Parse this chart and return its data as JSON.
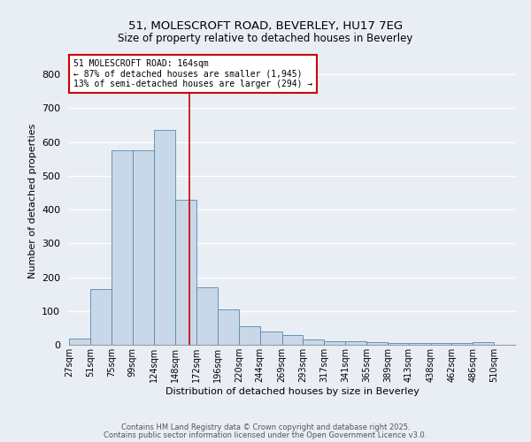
{
  "title1": "51, MOLESCROFT ROAD, BEVERLEY, HU17 7EG",
  "title2": "Size of property relative to detached houses in Beverley",
  "xlabel": "Distribution of detached houses by size in Beverley",
  "ylabel": "Number of detached properties",
  "bin_labels": [
    "27sqm",
    "51sqm",
    "75sqm",
    "99sqm",
    "124sqm",
    "148sqm",
    "172sqm",
    "196sqm",
    "220sqm",
    "244sqm",
    "269sqm",
    "293sqm",
    "317sqm",
    "341sqm",
    "365sqm",
    "389sqm",
    "413sqm",
    "438sqm",
    "462sqm",
    "486sqm",
    "510sqm"
  ],
  "bin_edges": [
    27,
    51,
    75,
    99,
    124,
    148,
    172,
    196,
    220,
    244,
    269,
    293,
    317,
    341,
    365,
    389,
    413,
    438,
    462,
    486,
    510
  ],
  "bar_heights": [
    18,
    165,
    575,
    575,
    635,
    430,
    170,
    105,
    55,
    40,
    30,
    15,
    10,
    10,
    7,
    5,
    5,
    5,
    5,
    7
  ],
  "bar_color": "#c8d8e8",
  "bar_edge_color": "#5588aa",
  "vline_x": 164,
  "vline_color": "#cc0000",
  "annotation_title": "51 MOLESCROFT ROAD: 164sqm",
  "annotation_line2": "← 87% of detached houses are smaller (1,945)",
  "annotation_line3": "13% of semi-detached houses are larger (294) →",
  "annotation_box_color": "#cc0000",
  "annotation_box_fill": "#ffffff",
  "ylim": [
    0,
    850
  ],
  "yticks": [
    0,
    100,
    200,
    300,
    400,
    500,
    600,
    700,
    800
  ],
  "background_color": "#e8eef4",
  "grid_color": "#ffffff",
  "footer1": "Contains HM Land Registry data © Crown copyright and database right 2025.",
  "footer2": "Contains public sector information licensed under the Open Government Licence v3.0."
}
